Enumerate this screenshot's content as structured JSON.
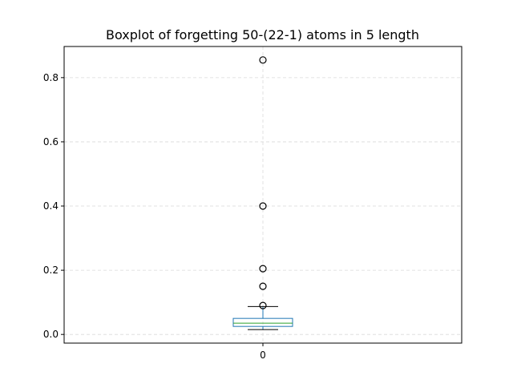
{
  "chart_data": {
    "type": "box",
    "title": "Boxplot of forgetting 50-(22-1) atoms in 5 length",
    "xlabel": "",
    "ylabel": "",
    "categories": [
      "0"
    ],
    "ylim": [
      -0.027,
      0.897
    ],
    "yticks": [
      0.0,
      0.2,
      0.4,
      0.6,
      0.8
    ],
    "grid": true,
    "box": {
      "whisker_low": 0.015,
      "q1": 0.025,
      "median": 0.035,
      "q3": 0.05,
      "whisker_high": 0.087
    },
    "outliers": [
      0.09,
      0.15,
      0.205,
      0.4,
      0.855
    ],
    "colors": {
      "box": "#1f77b4",
      "median": "#2ca02c",
      "whisker": "#1f77b4",
      "cap": "#000000",
      "outlier": "#000000",
      "grid": "#d9d9d9"
    }
  }
}
